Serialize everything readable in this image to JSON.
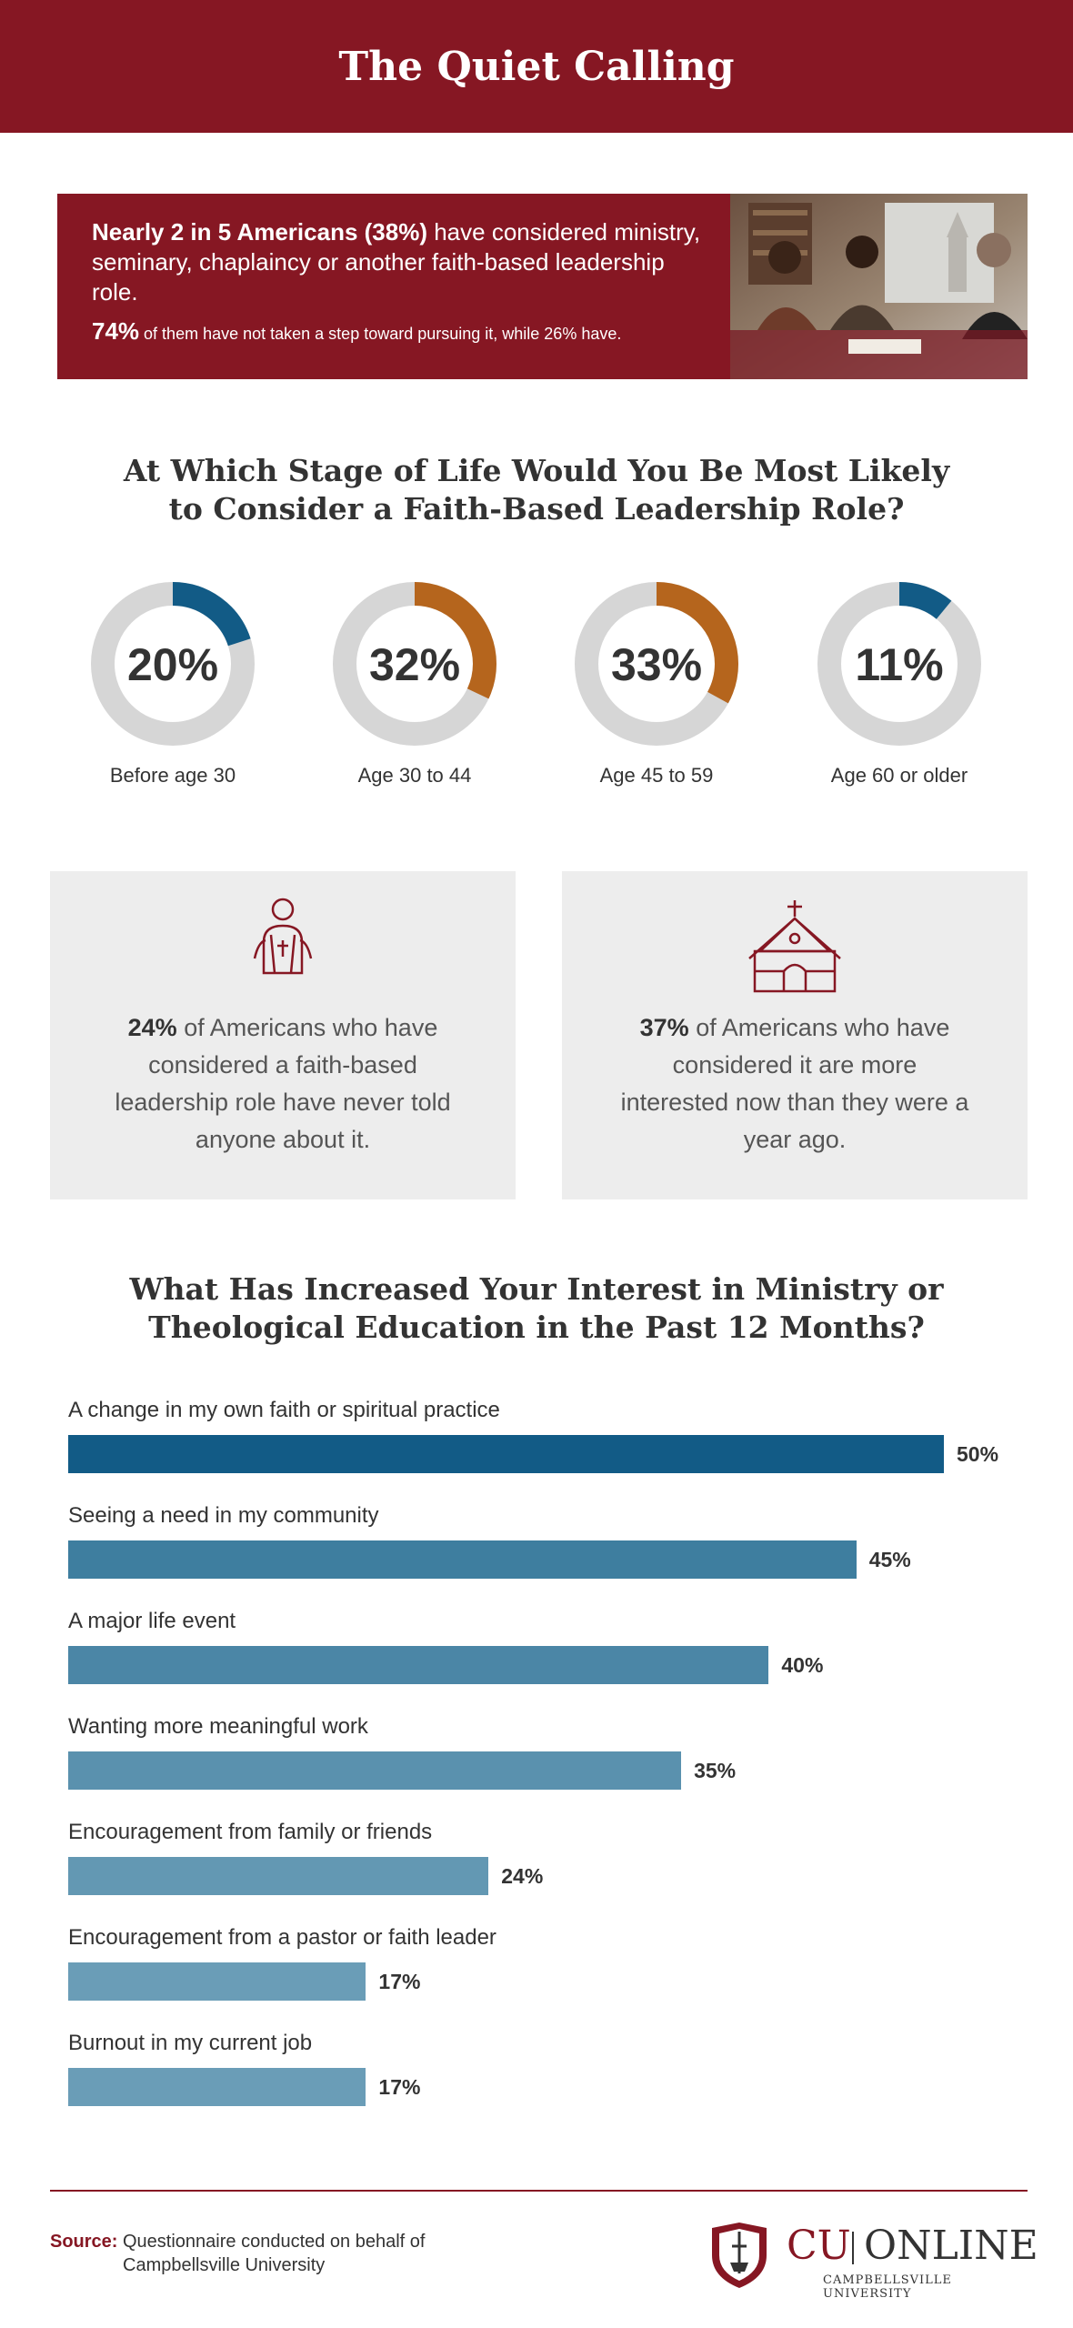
{
  "header": {
    "title": "The Quiet Calling"
  },
  "banner": {
    "lead_bold": "Nearly 2 in 5 Americans (38%)",
    "lead_rest": " have considered ministry, seminary, chaplaincy or another faith-based leadership role.",
    "sub_bold": "74%",
    "sub_rest": " of them have not taken a step toward pursuing it, while 26% have."
  },
  "stage_section": {
    "title_line1": "At Which Stage of Life Would You Be Most Likely",
    "title_line2": "to Consider a Faith-Based Leadership Role?"
  },
  "interest_section": {
    "title_line1": "What Has Increased Your Interest in Ministry or",
    "title_line2": "Theological Education in the Past 12 Months?"
  },
  "cards": [
    {
      "bold": "24%",
      "rest": " of Americans who have considered a faith-based leadership role have never told anyone about it.",
      "icon": "clergy-person-icon"
    },
    {
      "bold": "37%",
      "rest": " of Americans who have considered it are more interested now than they were a year ago.",
      "icon": "church-icon"
    }
  ],
  "chart_data": [
    {
      "type": "pie",
      "categories": [
        "Before age 30",
        "Age 30 to 44",
        "Age 45 to 59",
        "Age 60 or older"
      ],
      "values": [
        20,
        32,
        33,
        11
      ],
      "value_labels": [
        "20%",
        "32%",
        "33%",
        "11%"
      ],
      "colors": [
        "#125b86",
        "#b5651d",
        "#b5651d",
        "#125b86"
      ],
      "track_color": "#d6d6d6"
    },
    {
      "type": "bar",
      "orientation": "horizontal",
      "categories": [
        "A change in my own faith or spiritual practice",
        "Seeing a need in my community",
        "A major life event",
        "Wanting more meaningful work",
        "Encouragement from family or friends",
        "Encouragement from a pastor or faith leader",
        "Burnout in my current job"
      ],
      "values": [
        50,
        45,
        40,
        35,
        24,
        17,
        17
      ],
      "value_labels": [
        "50%",
        "45%",
        "40%",
        "35%",
        "24%",
        "17%",
        "17%"
      ],
      "colors": [
        "#125b86",
        "#3e7e9f",
        "#4b86a6",
        "#5a91ae",
        "#6398b3",
        "#6a9db7",
        "#6a9db7"
      ]
    }
  ],
  "footer": {
    "source_label": "Source:",
    "source_line1": "Questionnaire conducted on behalf of",
    "source_line2": "Campbellsville University",
    "logo_cu": "CU",
    "logo_online": "ONLINE",
    "logo_sub": "CAMPBELLSVILLE UNIVERSITY"
  }
}
